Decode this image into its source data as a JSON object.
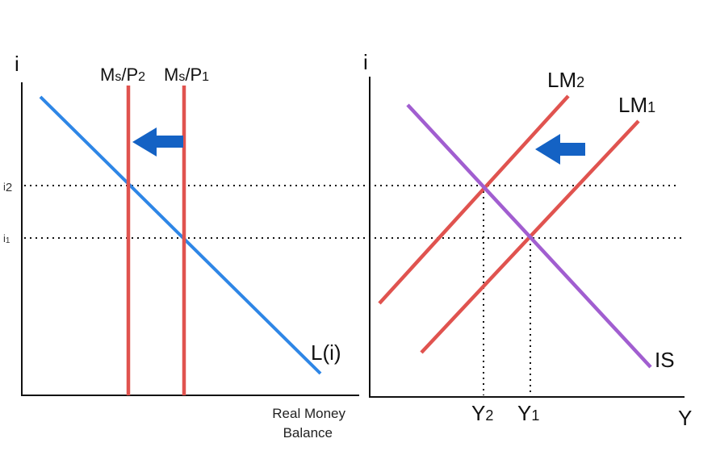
{
  "colors": {
    "money_demand": "#2e86e6",
    "money_supply": "#e0534f",
    "is_curve": "#a15ed0",
    "arrow": "#1462c4",
    "axis": "#111111",
    "guide": "#111111"
  },
  "left_panel": {
    "y_axis_label": "i",
    "x_axis_label_line1": "Real Money",
    "x_axis_label_line2": "Balance",
    "rate_high": {
      "base": "i",
      "sub": "2"
    },
    "rate_low": {
      "base": "i",
      "sub": "1"
    },
    "supply_new": {
      "m": "M",
      "m_sub": "s",
      "slash": "/P",
      "p_sub": "2"
    },
    "supply_old": {
      "m": "M",
      "m_sub": "s",
      "slash": "/P",
      "p_sub": "1"
    },
    "demand_label": "L(i)",
    "arrow_icon": "arrow-left-icon"
  },
  "right_panel": {
    "y_axis_label": "i",
    "x_axis_label": "Y",
    "lm_new": {
      "base": "LM",
      "sub": "2"
    },
    "lm_old": {
      "base": "LM",
      "sub": "1"
    },
    "is_label": "IS",
    "output_new": {
      "base": "Y",
      "sub": "2"
    },
    "output_old": {
      "base": "Y",
      "sub": "1"
    },
    "arrow_icon": "arrow-left-icon"
  }
}
